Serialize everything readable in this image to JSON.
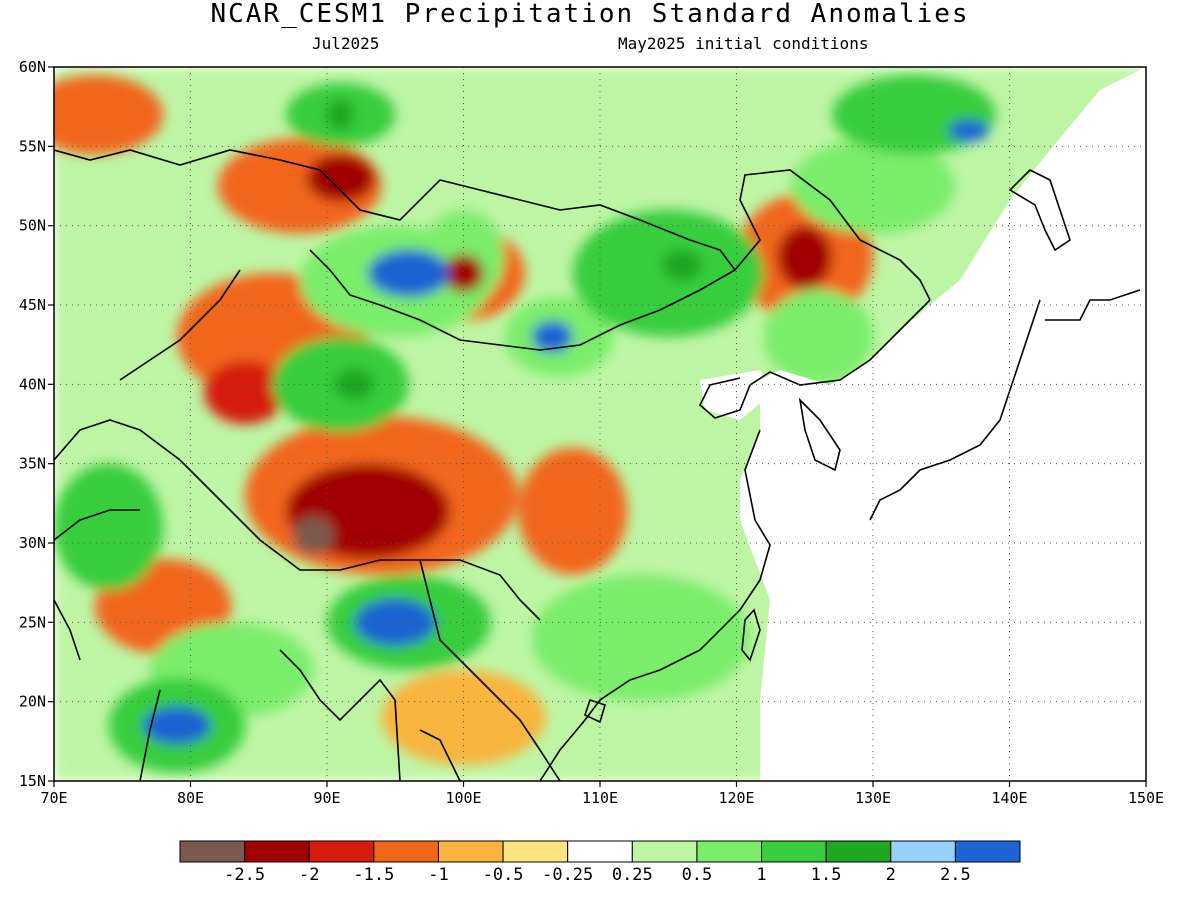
{
  "header": {
    "title": "NCAR_CESM1 Precipitation Standard Anomalies",
    "valid_month": "Jul2025",
    "init_conditions": "May2025 initial conditions"
  },
  "map": {
    "lon_range": [
      70,
      150
    ],
    "lat_range": [
      15,
      60
    ],
    "lon_ticks": [
      "70E",
      "80E",
      "90E",
      "100E",
      "110E",
      "120E",
      "130E",
      "140E",
      "150E"
    ],
    "lat_ticks": [
      "60N",
      "55N",
      "50N",
      "45N",
      "40N",
      "35N",
      "30N",
      "25N",
      "20N",
      "15N"
    ],
    "grid": "dotted"
  },
  "colorbar": {
    "colors": [
      "#7a5a4e",
      "#a00000",
      "#d61b0f",
      "#f2661a",
      "#f8b43c",
      "#fde47e",
      "#ffffff",
      "#bdf5a4",
      "#7aed6a",
      "#38cd3c",
      "#1ea722",
      "#96d2fa",
      "#1e64d2"
    ],
    "labels": [
      "-2.5",
      "-2",
      "-1.5",
      "-1",
      "-0.5",
      "-0.25",
      "0.25",
      "0.5",
      "1",
      "1.5",
      "2",
      "2.5"
    ]
  },
  "anomalies": [
    {
      "lon": 73,
      "lat": 57,
      "level": -1,
      "rx": 5,
      "ry": 2.5
    },
    {
      "lon": 88,
      "lat": 52.5,
      "level": -1,
      "rx": 6,
      "ry": 3
    },
    {
      "lon": 91,
      "lat": 53,
      "level": -2,
      "rx": 2.5,
      "ry": 1.5
    },
    {
      "lon": 100,
      "lat": 47,
      "level": -1,
      "rx": 4.5,
      "ry": 3
    },
    {
      "lon": 100,
      "lat": 47,
      "level": -2,
      "rx": 1.5,
      "ry": 1.2
    },
    {
      "lon": 125,
      "lat": 48,
      "level": -1,
      "rx": 5,
      "ry": 4
    },
    {
      "lon": 125,
      "lat": 48,
      "level": -2,
      "rx": 2,
      "ry": 2
    },
    {
      "lon": 86,
      "lat": 43,
      "level": -1,
      "rx": 7,
      "ry": 4
    },
    {
      "lon": 84,
      "lat": 39.5,
      "level": -1.5,
      "rx": 3,
      "ry": 2
    },
    {
      "lon": 94,
      "lat": 33,
      "level": -1,
      "rx": 10,
      "ry": 5
    },
    {
      "lon": 93,
      "lat": 32,
      "level": -2,
      "rx": 6,
      "ry": 3
    },
    {
      "lon": 89,
      "lat": 30.5,
      "level": -2.5,
      "rx": 1.5,
      "ry": 1.2
    },
    {
      "lon": 108,
      "lat": 32,
      "level": -1,
      "rx": 4,
      "ry": 4
    },
    {
      "lon": 78,
      "lat": 26,
      "level": -1,
      "rx": 5,
      "ry": 3
    },
    {
      "lon": 100,
      "lat": 19,
      "level": -0.5,
      "rx": 6,
      "ry": 3
    },
    {
      "lon": 100,
      "lat": 48,
      "level": 1,
      "rx": 3,
      "ry": 3
    },
    {
      "lon": 95,
      "lat": 46.5,
      "level": 1,
      "rx": 7,
      "ry": 3.5
    },
    {
      "lon": 96,
      "lat": 47,
      "level": 2.5,
      "rx": 3,
      "ry": 1.5
    },
    {
      "lon": 115,
      "lat": 47,
      "level": 1.5,
      "rx": 7,
      "ry": 4
    },
    {
      "lon": 116,
      "lat": 47.5,
      "level": 2,
      "rx": 1.5,
      "ry": 1
    },
    {
      "lon": 107,
      "lat": 43,
      "level": 1,
      "rx": 4,
      "ry": 2.5
    },
    {
      "lon": 106.5,
      "lat": 43,
      "level": 2.5,
      "rx": 1.5,
      "ry": 1
    },
    {
      "lon": 91,
      "lat": 40,
      "level": 1.5,
      "rx": 5,
      "ry": 3
    },
    {
      "lon": 92,
      "lat": 40,
      "level": 2,
      "rx": 1.5,
      "ry": 1
    },
    {
      "lon": 91,
      "lat": 57,
      "level": 1.5,
      "rx": 4,
      "ry": 2
    },
    {
      "lon": 91,
      "lat": 57,
      "level": 2,
      "rx": 1,
      "ry": 1
    },
    {
      "lon": 133,
      "lat": 57,
      "level": 1.5,
      "rx": 6,
      "ry": 2.5
    },
    {
      "lon": 137,
      "lat": 56,
      "level": 2.5,
      "rx": 1.5,
      "ry": 0.7
    },
    {
      "lon": 96,
      "lat": 25,
      "level": 1.5,
      "rx": 6,
      "ry": 3
    },
    {
      "lon": 95,
      "lat": 25,
      "level": 2.5,
      "rx": 3,
      "ry": 1.5
    },
    {
      "lon": 79,
      "lat": 18.5,
      "level": 1.5,
      "rx": 5,
      "ry": 3
    },
    {
      "lon": 79,
      "lat": 18.5,
      "level": 2.5,
      "rx": 2.5,
      "ry": 1.2
    },
    {
      "lon": 74,
      "lat": 31,
      "level": 1.5,
      "rx": 4,
      "ry": 4
    },
    {
      "lon": 113,
      "lat": 24,
      "level": 1,
      "rx": 8,
      "ry": 4
    },
    {
      "lon": 130,
      "lat": 52.5,
      "level": 1,
      "rx": 6,
      "ry": 3
    },
    {
      "lon": 126,
      "lat": 43,
      "level": 1,
      "rx": 4,
      "ry": 3
    },
    {
      "lon": 83,
      "lat": 22,
      "level": 1,
      "rx": 6,
      "ry": 3
    }
  ]
}
